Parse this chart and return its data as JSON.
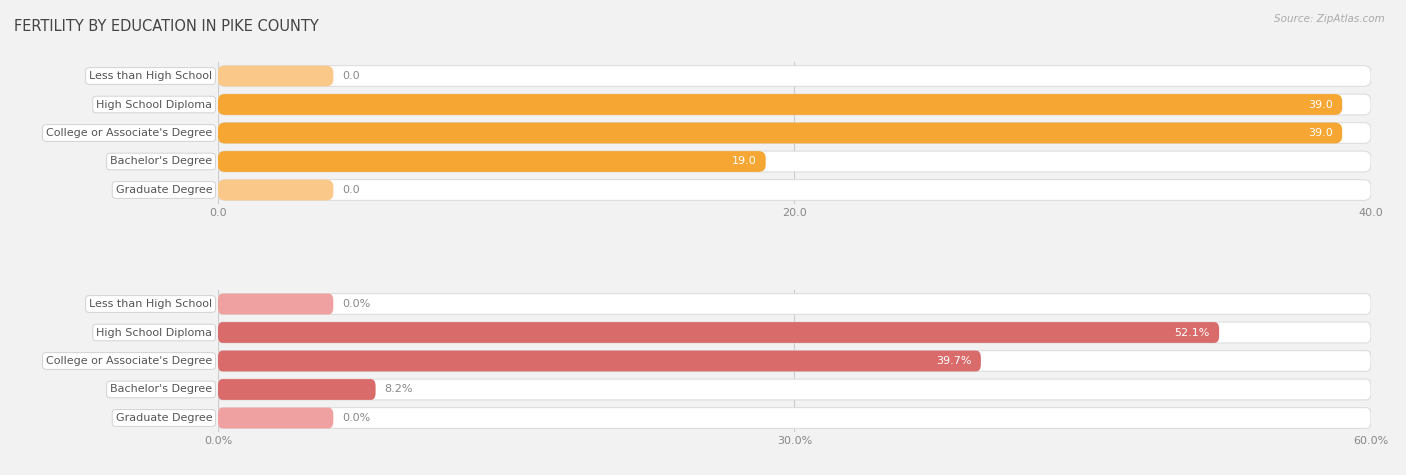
{
  "title": "FERTILITY BY EDUCATION IN PIKE COUNTY",
  "source": "Source: ZipAtlas.com",
  "top_chart": {
    "categories": [
      "Less than High School",
      "High School Diploma",
      "College or Associate's Degree",
      "Bachelor's Degree",
      "Graduate Degree"
    ],
    "values": [
      0.0,
      39.0,
      39.0,
      19.0,
      0.0
    ],
    "xlim": [
      0,
      40.0
    ],
    "xticks": [
      0.0,
      20.0,
      40.0
    ],
    "xticklabels": [
      "0.0",
      "20.0",
      "40.0"
    ],
    "bar_color": "#F5A633",
    "bar_color_light": "#FAC98A",
    "value_threshold_pct": 0.35
  },
  "bottom_chart": {
    "categories": [
      "Less than High School",
      "High School Diploma",
      "College or Associate's Degree",
      "Bachelor's Degree",
      "Graduate Degree"
    ],
    "values": [
      0.0,
      52.1,
      39.7,
      8.2,
      0.0
    ],
    "xlim": [
      0,
      60.0
    ],
    "xticks": [
      0.0,
      30.0,
      60.0
    ],
    "xticklabels": [
      "0.0%",
      "30.0%",
      "60.0%"
    ],
    "bar_color": "#D96B6B",
    "bar_color_light": "#EFA0A0",
    "value_threshold_pct": 0.35
  },
  "bg_color": "#F2F2F2",
  "bar_bg_color": "#FFFFFF",
  "bar_row_bg": "#EBEBEB",
  "label_font_size": 8.0,
  "tick_font_size": 8.0,
  "title_font_size": 10.5,
  "source_font_size": 7.5,
  "title_color": "#444444",
  "tick_color": "#888888",
  "label_color": "#555555",
  "inside_label_color": "#FFFFFF",
  "outside_label_color": "#888888"
}
